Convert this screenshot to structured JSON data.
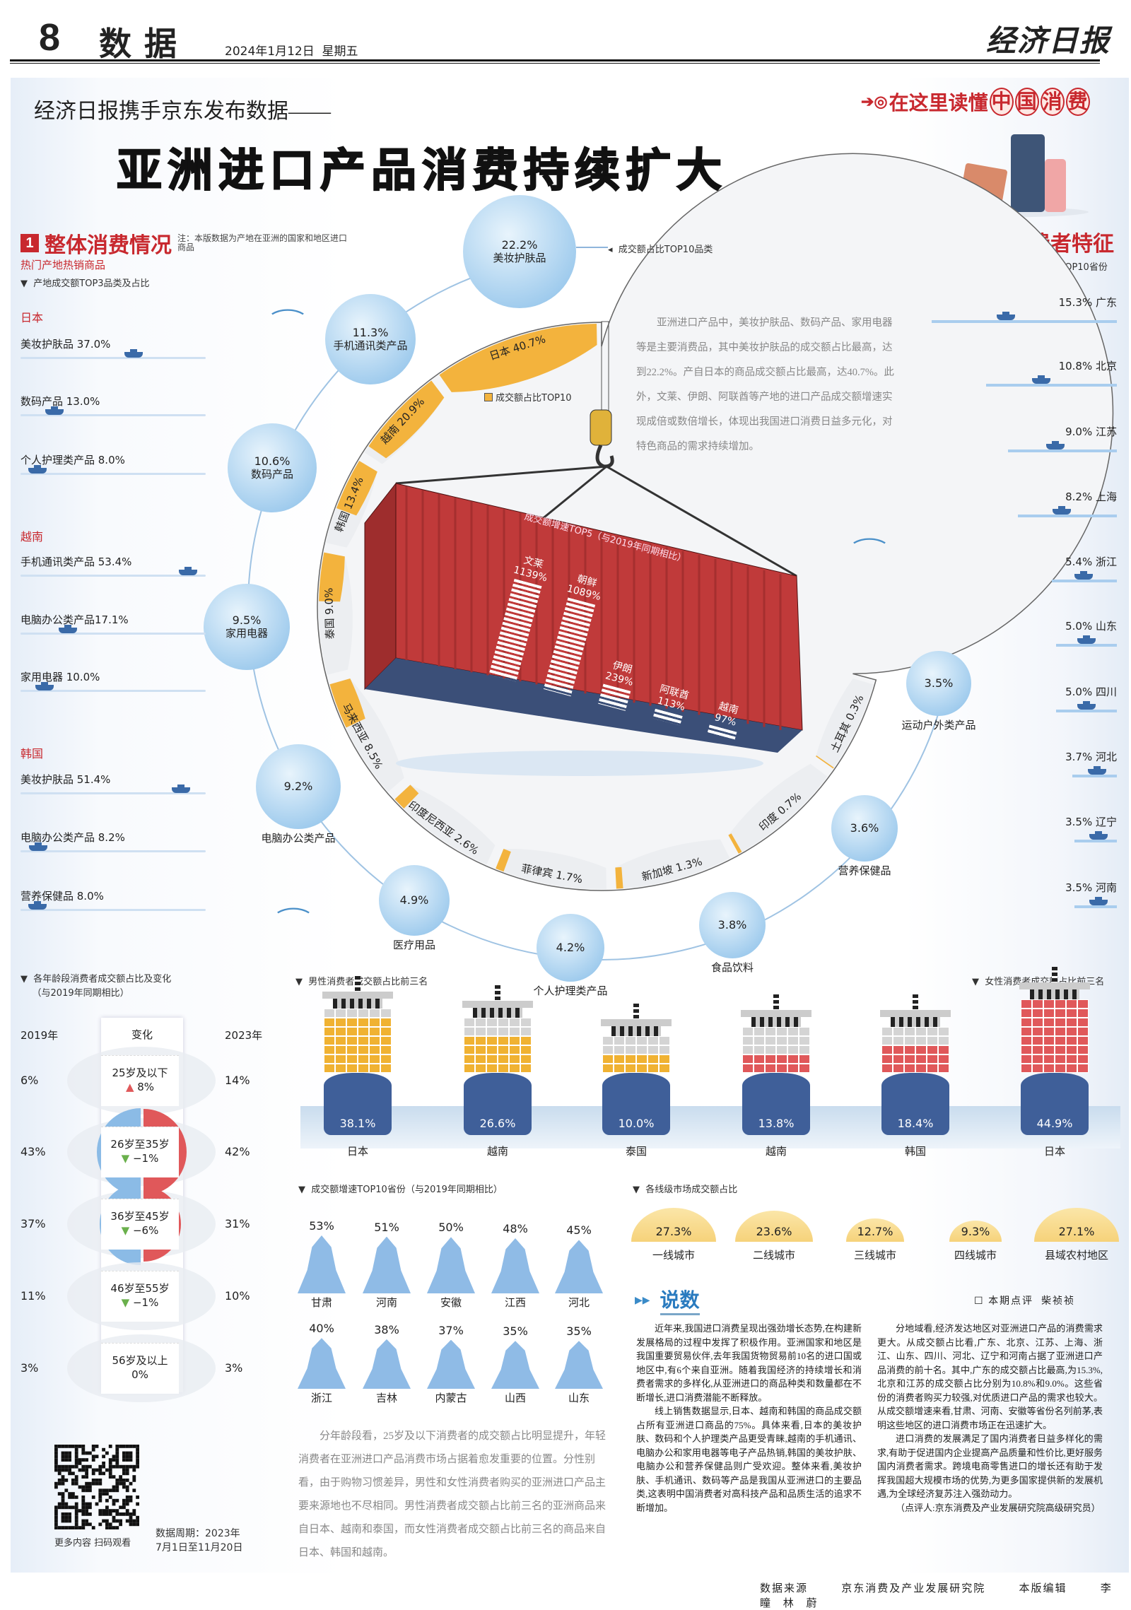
{
  "masthead": {
    "page_number": "8",
    "section": "数据",
    "date": "2024年1月12日",
    "weekday": "星期五",
    "paper_logo": "经济日报"
  },
  "banner": {
    "kicker": "经济日报携手京东发布数据——",
    "title": "亚洲进口产品消费持续扩大",
    "series_tag": "在这里读懂",
    "series_tag_circled": [
      "中",
      "国",
      "消",
      "费"
    ]
  },
  "section1": {
    "number": "1",
    "title": "整体消费情况",
    "note": "注：本版数据为产地在亚洲的国家和地区进口商品",
    "subtitle": "热门产地热销商品",
    "chart_label": "产地成交额TOP3品类及占比",
    "origins": [
      {
        "country": "日本",
        "items": [
          {
            "label": "美妆护肤品 37.0%",
            "value": 37.0
          },
          {
            "label": "数码产品 13.0%",
            "value": 13.0
          },
          {
            "label": "个人护理类产品 8.0%",
            "value": 8.0
          }
        ]
      },
      {
        "country": "越南",
        "items": [
          {
            "label": "手机通讯类产品 53.4%",
            "value": 53.4
          },
          {
            "label": "电脑办公类产品17.1%",
            "value": 17.1
          },
          {
            "label": "家用电器 10.0%",
            "value": 10.0
          }
        ]
      },
      {
        "country": "韩国",
        "items": [
          {
            "label": "美妆护肤品 51.4%",
            "value": 51.4
          },
          {
            "label": "电脑办公类产品 8.2%",
            "value": 8.2
          },
          {
            "label": "营养保健品 8.0%",
            "value": 8.0
          }
        ]
      }
    ]
  },
  "categories": {
    "label": "成交额占比TOP10品类",
    "items": [
      {
        "pct": "22.2%",
        "name": "美妆护肤品",
        "value": 22.2
      },
      {
        "pct": "11.3%",
        "name": "手机通讯类产品",
        "value": 11.3
      },
      {
        "pct": "10.6%",
        "name": "数码产品",
        "value": 10.6
      },
      {
        "pct": "9.5%",
        "name": "家用电器",
        "value": 9.5
      },
      {
        "pct": "9.2%",
        "name": "电脑办公类产品",
        "value": 9.2
      },
      {
        "pct": "4.9%",
        "name": "医疗用品",
        "value": 4.9
      },
      {
        "pct": "4.2%",
        "name": "个人护理类产品",
        "value": 4.2
      },
      {
        "pct": "3.8%",
        "name": "食品饮料",
        "value": 3.8
      },
      {
        "pct": "3.6%",
        "name": "营养保健品",
        "value": 3.6
      },
      {
        "pct": "3.5%",
        "name": "运动户外类产品",
        "value": 3.5
      }
    ]
  },
  "countries": {
    "legend": "成交额占比TOP10",
    "color": "#f3b33d",
    "items": [
      {
        "label": "日本 40.7%",
        "value": 40.7
      },
      {
        "label": "越南 20.9%",
        "value": 20.9
      },
      {
        "label": "韩国 13.4%",
        "value": 13.4
      },
      {
        "label": "泰国 9.0%",
        "value": 9.0
      },
      {
        "label": "马来西亚 8.5%",
        "value": 8.5
      },
      {
        "label": "印度尼西亚 2.6%",
        "value": 2.6
      },
      {
        "label": "菲律宾 1.7%",
        "value": 1.7
      },
      {
        "label": "新加坡 1.3%",
        "value": 1.3
      },
      {
        "label": "印度 0.7%",
        "value": 0.7
      },
      {
        "label": "土耳其 0.3%",
        "value": 0.3
      }
    ]
  },
  "intro_text": "亚洲进口产品中，美妆护肤品、数码产品、家用电器等是主要消费品，其中美妆护肤品的成交额占比最高，达到22.2%。产自日本的商品成交额占比最高，达40.7%。此外，文莱、伊朗、阿联酋等产地的进口产品成交额增速实现成倍或数倍增长，体现出我国进口消费日益多元化，对特色商品的需求持续增加。",
  "growth_top5": {
    "title": "成交额增速TOP5（与2019年同期相比）",
    "items": [
      {
        "name": "文莱",
        "pct": "1139%",
        "value": 1139
      },
      {
        "name": "朝鲜",
        "pct": "1089%",
        "value": 1089
      },
      {
        "name": "伊朗",
        "pct": "239%",
        "value": 239
      },
      {
        "name": "阿联酋",
        "pct": "113%",
        "value": 113
      },
      {
        "name": "越南",
        "pct": "97%",
        "value": 97
      }
    ]
  },
  "section2": {
    "number": "2",
    "title": "消费者特征",
    "chart_label": "成交额占比TOP10省份",
    "items": [
      {
        "label": "15.3%  广东",
        "value": 15.3
      },
      {
        "label": "10.8%  北京",
        "value": 10.8
      },
      {
        "label": "9.0%  江苏",
        "value": 9.0
      },
      {
        "label": "8.2%  上海",
        "value": 8.2
      },
      {
        "label": "5.4%  浙江",
        "value": 5.4
      },
      {
        "label": "5.0%  山东",
        "value": 5.0
      },
      {
        "label": "5.0%  四川",
        "value": 5.0
      },
      {
        "label": "3.7%  河北",
        "value": 3.7
      },
      {
        "label": "3.5%  辽宁",
        "value": 3.5
      },
      {
        "label": "3.5%  河南",
        "value": 3.5
      }
    ]
  },
  "age": {
    "title": "各年龄段消费者成交额占比及变化",
    "title2": "（与2019年同期相比）",
    "col_2019": "2019年",
    "col_change": "变化",
    "col_2023": "2023年",
    "colors": {
      "y2019": "#8bbbe6",
      "y2023": "#e0585a",
      "up": "#e0585a",
      "down": "#6ab04c"
    },
    "rows": [
      {
        "group": "25岁及以下",
        "v2019": "6%",
        "v2023": "14%",
        "change": "8%",
        "dir": "up",
        "a": 6,
        "b": 14
      },
      {
        "group": "26岁至35岁",
        "v2019": "43%",
        "v2023": "42%",
        "change": "−1%",
        "dir": "down",
        "a": 43,
        "b": 42
      },
      {
        "group": "36岁至45岁",
        "v2019": "37%",
        "v2023": "31%",
        "change": "−6%",
        "dir": "down",
        "a": 37,
        "b": 31
      },
      {
        "group": "46岁至55岁",
        "v2019": "11%",
        "v2023": "10%",
        "change": "−1%",
        "dir": "down",
        "a": 11,
        "b": 10
      },
      {
        "group": "56岁及以上",
        "v2019": "3%",
        "v2023": "3%",
        "change": "0%",
        "dir": "none",
        "a": 3,
        "b": 3
      }
    ]
  },
  "gender": {
    "male_label": "男性消费者成交额占比前三名",
    "female_label": "女性消费者成交额占比前三名",
    "colors": {
      "male": "#f0b232",
      "female": "#e0585a",
      "hull": "#3f5f99"
    },
    "male": [
      {
        "country": "日本",
        "pct": "38.1%",
        "value": 38.1
      },
      {
        "country": "越南",
        "pct": "26.6%",
        "value": 26.6
      },
      {
        "country": "泰国",
        "pct": "10.0%",
        "value": 10.0
      }
    ],
    "female": [
      {
        "country": "越南",
        "pct": "13.8%",
        "value": 13.8
      },
      {
        "country": "韩国",
        "pct": "18.4%",
        "value": 18.4
      },
      {
        "country": "日本",
        "pct": "44.9%",
        "value": 44.9
      }
    ]
  },
  "province_growth": {
    "title": "成交额增速TOP10省份（与2019年同期相比）",
    "items": [
      {
        "name": "甘肃",
        "pct": "53%",
        "value": 53
      },
      {
        "name": "河南",
        "pct": "51%",
        "value": 51
      },
      {
        "name": "安徽",
        "pct": "50%",
        "value": 50
      },
      {
        "name": "江西",
        "pct": "48%",
        "value": 48
      },
      {
        "name": "河北",
        "pct": "45%",
        "value": 45
      },
      {
        "name": "浙江",
        "pct": "40%",
        "value": 40
      },
      {
        "name": "吉林",
        "pct": "38%",
        "value": 38
      },
      {
        "name": "内蒙古",
        "pct": "37%",
        "value": 37
      },
      {
        "name": "山西",
        "pct": "35%",
        "value": 35
      },
      {
        "name": "山东",
        "pct": "35%",
        "value": 35
      }
    ]
  },
  "city_tiers": {
    "title": "各线级市场成交额占比",
    "items": [
      {
        "name": "一线城市",
        "pct": "27.3%",
        "value": 27.3
      },
      {
        "name": "二线城市",
        "pct": "23.6%",
        "value": 23.6
      },
      {
        "name": "三线城市",
        "pct": "12.7%",
        "value": 12.7
      },
      {
        "name": "四线城市",
        "pct": "9.3%",
        "value": 9.3
      },
      {
        "name": "县域农村地区",
        "pct": "27.1%",
        "value": 27.1
      }
    ]
  },
  "summary_text": "分年龄段看，25岁及以下消费者的成交额占比明显提升，年轻消费者在亚洲进口产品消费市场占据着愈发重要的位置。分性别看，由于购物习惯差异，男性和女性消费者购买的亚洲进口产品主要来源地也不尽相同。男性消费者成交额占比前三名的亚洲商品来自日本、越南和泰国，而女性消费者成交额占比前三名的商品来自日本、韩国和越南。",
  "commentary": {
    "title": "说数",
    "byline_label": "本期点评",
    "author": "柴祯祯",
    "paragraphs": [
      "近年来,我国进口消费呈现出强劲增长态势,在构建新发展格局的过程中发挥了积极作用。亚洲国家和地区是我国重要贸易伙伴,去年我国货物贸易前10名的进口国或地区中,有6个来自亚洲。随着我国经济的持续增长和消费者需求的多样化,从亚洲进口的商品种类和数量都在不断增长,进口消费潜能不断释放。",
      "线上销售数据显示,日本、越南和韩国的商品成交额占所有亚洲进口商品的75%。具体来看,日本的美妆护肤、数码和个人护理类产品更受青睐,越南的手机通讯、电脑办公和家用电器等电子产品热销,韩国的美妆护肤、电脑办公和营养保健品则广受欢迎。整体来看,美妆护肤、手机通讯、数码等产品是我国从亚洲进口的主要品类,这表明中国消费者对高科技产品和品质生活的追求不断增加。",
      "分地域看,经济发达地区对亚洲进口产品的消费需求更大。从成交额占比看,广东、北京、江苏、上海、浙江、山东、四川、河北、辽宁和河南占据了亚洲进口产品消费的前十名。其中,广东的成交额占比最高,为15.3%,北京和江苏的成交额占比分别为10.8%和9.0%。这些省份的消费者购买力较强,对优质进口产品的需求也较大。从成交额增速来看,甘肃、河南、安徽等省份名列前茅,表明这些地区的进口消费市场正在迅速扩大。",
      "进口消费的发展满足了国内消费者日益多样化的需求,有助于促进国内企业提高产品质量和性价比,更好服务国内消费者需求。跨境电商零售进口的增长还有助于发挥我国超大规模市场的优势,为更多国家提供新的发展机遇,为全球经济复苏注入强劲动力。",
      "（点评人:京东消费及产业发展研究院高级研究员）"
    ]
  },
  "qr": {
    "caption": "更多内容 扫码观看"
  },
  "data_period": {
    "line1": "数据周期：2023年",
    "line2": "7月1日至11月20日"
  },
  "footer": {
    "source_label": "数据来源",
    "source": "京东消费及产业发展研究院",
    "editor_label": "本版编辑",
    "editors": "李 瞳 林 蔚"
  }
}
